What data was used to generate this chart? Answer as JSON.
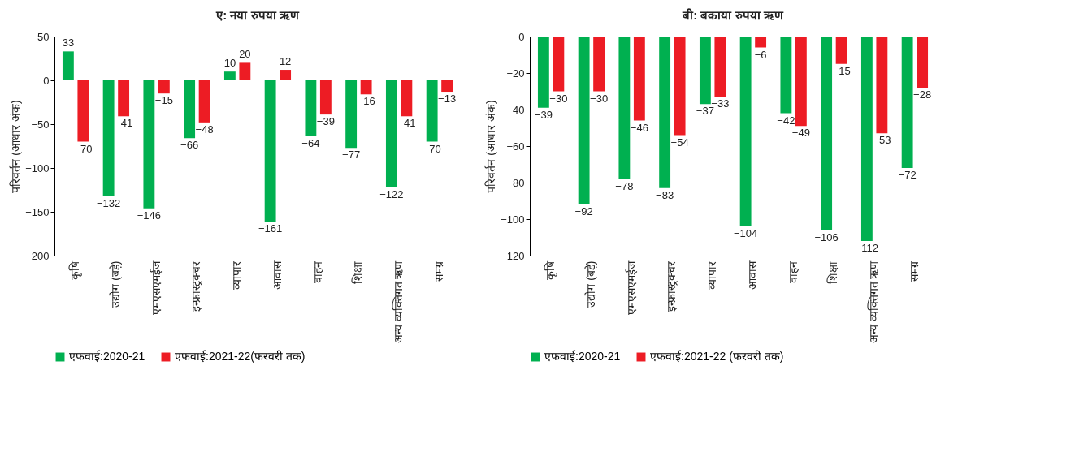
{
  "chart_data": [
    {
      "type": "bar",
      "title": "ए: नया रुपया ऋण",
      "ylabel": "परिवर्तन (आधार अंक)",
      "categories": [
        "कृषि",
        "उद्योग (बड़े)",
        "एमएसएमईज",
        "इन्फ्रास्ट्रक्चर",
        "व्यापार",
        "आवास",
        "वाहन",
        "शिक्षा",
        "अन्य व्यक्तिगत ऋण",
        "समग्र"
      ],
      "ylim": [
        -200,
        50
      ],
      "yticks": [
        -200,
        -150,
        -100,
        -50,
        0,
        50
      ],
      "data_labels": true,
      "legend": "bottom",
      "grid": false,
      "series": [
        {
          "name": "एफवाई:2020-21",
          "color": "#00b050",
          "values": [
            33,
            -132,
            -146,
            -66,
            10,
            -161,
            -64,
            -77,
            -122,
            -70
          ]
        },
        {
          "name": "एफवाई:2021-22(फरवरी तक)",
          "color": "#ed1c24",
          "values": [
            -70,
            -41,
            -15,
            -48,
            20,
            12,
            -39,
            -16,
            -41,
            -13
          ]
        }
      ]
    },
    {
      "type": "bar",
      "title": "बी: बकाया रुपया ऋण",
      "ylabel": "परिवर्तन (आधार अंक)",
      "categories": [
        "कृषि",
        "उद्योग (बड़े)",
        "एमएसएमईज",
        "इन्फ्रास्ट्रक्चर",
        "व्यापार",
        "आवास",
        "वाहन",
        "शिक्षा",
        "अन्य व्यक्तिगत ऋण",
        "समग्र"
      ],
      "ylim": [
        -120,
        0
      ],
      "yticks": [
        -120,
        -100,
        -80,
        -60,
        -40,
        -20,
        0
      ],
      "data_labels": true,
      "legend": "bottom",
      "grid": false,
      "series": [
        {
          "name": "एफवाई:2020-21",
          "color": "#00b050",
          "values": [
            -39,
            -92,
            -78,
            -83,
            -37,
            -104,
            -42,
            -106,
            -112,
            -72
          ]
        },
        {
          "name": "एफवाई:2021-22 (फरवरी तक)",
          "color": "#ed1c24",
          "values": [
            -30,
            -30,
            -46,
            -54,
            -33,
            -6,
            -49,
            -15,
            -53,
            -28
          ]
        }
      ]
    }
  ]
}
